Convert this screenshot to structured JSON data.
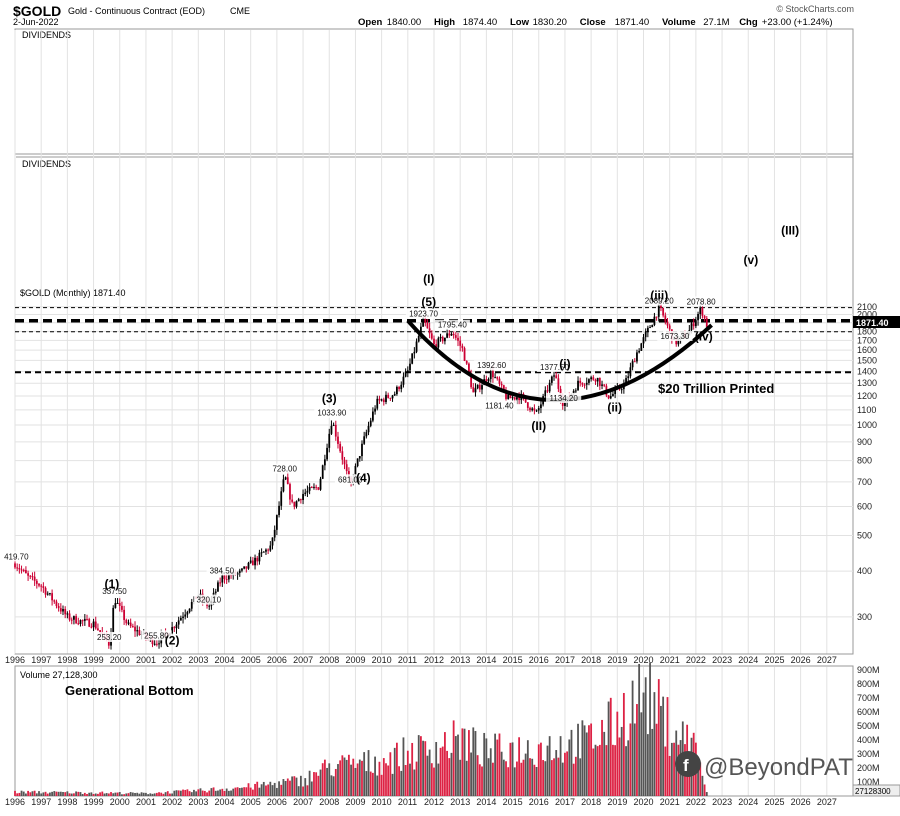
{
  "header": {
    "symbol": "$GOLD",
    "name": "Gold - Continuous Contract (EOD)",
    "exchange": "CME",
    "date": "2-Jun-2022",
    "watermark": "© StockCharts.com",
    "ohlc": [
      {
        "label": "Open",
        "value": "1840.00"
      },
      {
        "label": "High",
        "value": "1874.40"
      },
      {
        "label": "Low",
        "value": "1830.20"
      },
      {
        "label": "Close",
        "value": "1871.40"
      },
      {
        "label": "Volume",
        "value": "27.1M"
      },
      {
        "label": "Chg",
        "value": "+23.00 (+1.24%)"
      }
    ]
  },
  "panels": {
    "dividends_1": "DIVIDENDS",
    "dividends_2": "DIVIDENDS",
    "price_legend": "$GOLD (Monthly) 1871.40",
    "volume_legend": "Volume 27,128,300",
    "price_tag": "1871.40",
    "volume_tag": "27128300"
  },
  "labels": {
    "generational_bottom": "Generational Bottom",
    "trillion": "$20 Trillion Printed",
    "brand": "@BeyondPAT"
  },
  "colors": {
    "up": "#000000",
    "down": "#cc0033",
    "vol_up": "#555555",
    "vol_down": "#dd2244"
  },
  "chart_data": {
    "type": "candlestick",
    "scale": "log",
    "ylim": [
      250,
      2150
    ],
    "xlim": [
      "1996-01",
      "2027-12"
    ],
    "x_ticks": [
      "1996",
      "1997",
      "1998",
      "1999",
      "2000",
      "2001",
      "2002",
      "2003",
      "2004",
      "2005",
      "2006",
      "2007",
      "2008",
      "2009",
      "2010",
      "2011",
      "2012",
      "2013",
      "2014",
      "2015",
      "2016",
      "2017",
      "2018",
      "2019",
      "2020",
      "2021",
      "2022",
      "2023",
      "2024",
      "2025",
      "2026",
      "2027"
    ],
    "y_ticks": [
      300,
      400,
      500,
      600,
      700,
      800,
      900,
      1000,
      1100,
      1200,
      1300,
      1400,
      1500,
      1600,
      1700,
      1800,
      1900,
      2000,
      2100
    ],
    "price_anchors": [
      [
        1996.0,
        419.7
      ],
      [
        1996.5,
        385
      ],
      [
        1997.0,
        365
      ],
      [
        1997.5,
        330
      ],
      [
        1998.0,
        300
      ],
      [
        1998.5,
        292
      ],
      [
        1999.0,
        288
      ],
      [
        1999.6,
        253.2
      ],
      [
        1999.8,
        337.5
      ],
      [
        2000.3,
        285
      ],
      [
        2001.0,
        265
      ],
      [
        2001.4,
        255.8
      ],
      [
        2002.0,
        280
      ],
      [
        2002.5,
        310
      ],
      [
        2003.0,
        345
      ],
      [
        2003.4,
        320.1
      ],
      [
        2003.9,
        384.5
      ],
      [
        2004.6,
        395
      ],
      [
        2005.2,
        430
      ],
      [
        2005.8,
        470
      ],
      [
        2006.3,
        728
      ],
      [
        2006.6,
        600
      ],
      [
        2007.0,
        650
      ],
      [
        2007.6,
        680
      ],
      [
        2008.1,
        1033.9
      ],
      [
        2008.8,
        681
      ],
      [
        2009.3,
        900
      ],
      [
        2009.8,
        1150
      ],
      [
        2010.5,
        1220
      ],
      [
        2011.0,
        1400
      ],
      [
        2011.6,
        1923.7
      ],
      [
        2012.0,
        1650
      ],
      [
        2012.7,
        1795
      ],
      [
        2013.1,
        1600
      ],
      [
        2013.5,
        1220
      ],
      [
        2014.2,
        1392.6
      ],
      [
        2014.8,
        1180
      ],
      [
        2015.3,
        1200
      ],
      [
        2015.9,
        1070
      ],
      [
        2016.6,
        1377.5
      ],
      [
        2016.95,
        1134
      ],
      [
        2017.5,
        1300
      ],
      [
        2018.2,
        1350
      ],
      [
        2018.7,
        1190
      ],
      [
        2019.3,
        1300
      ],
      [
        2019.7,
        1550
      ],
      [
        2020.6,
        2089.2
      ],
      [
        2021.2,
        1673.3
      ],
      [
        2021.7,
        1780
      ],
      [
        2022.2,
        2078.8
      ],
      [
        2022.42,
        1871.4
      ]
    ],
    "annotations": [
      {
        "text": "419.70",
        "x": 1996.05,
        "y": 419.7
      },
      {
        "text": "337.50",
        "x": 1999.8,
        "y": 337.5
      },
      {
        "text": "253.20",
        "x": 1999.6,
        "y": 253.2
      },
      {
        "text": "255.80",
        "x": 2001.4,
        "y": 255.8
      },
      {
        "text": "320.10",
        "x": 2003.4,
        "y": 320.1
      },
      {
        "text": "384.50",
        "x": 2003.9,
        "y": 384.5
      },
      {
        "text": "728.00",
        "x": 2006.3,
        "y": 728
      },
      {
        "text": "1033.90",
        "x": 2008.1,
        "y": 1033.9
      },
      {
        "text": "681.00",
        "x": 2008.8,
        "y": 681
      },
      {
        "text": "1923.70",
        "x": 2011.6,
        "y": 1923.7
      },
      {
        "text": "1795.40",
        "x": 2012.7,
        "y": 1795.4
      },
      {
        "text": "1392.60",
        "x": 2014.2,
        "y": 1392.6
      },
      {
        "text": "1181.40",
        "x": 2014.5,
        "y": 1181.4
      },
      {
        "text": "1377.50",
        "x": 2016.6,
        "y": 1377.5
      },
      {
        "text": "1134.20",
        "x": 2016.95,
        "y": 1134.2
      },
      {
        "text": "2089.20",
        "x": 2020.6,
        "y": 2089.2
      },
      {
        "text": "1673.30",
        "x": 2021.2,
        "y": 1673.3
      },
      {
        "text": "2078.80",
        "x": 2022.2,
        "y": 2078.8
      }
    ],
    "waves": [
      {
        "text": "(1)",
        "x": 1999.7,
        "y": 360
      },
      {
        "text": "(2)",
        "x": 2002.0,
        "y": 252
      },
      {
        "text": "(3)",
        "x": 2008.0,
        "y": 1150
      },
      {
        "text": "(4)",
        "x": 2009.3,
        "y": 700
      },
      {
        "text": "(5)",
        "x": 2011.8,
        "y": 2110
      },
      {
        "text": "(I)",
        "x": 2011.8,
        "y": 2440
      },
      {
        "text": "(II)",
        "x": 2016.0,
        "y": 970
      },
      {
        "text": "(i)",
        "x": 2017.0,
        "y": 1430
      },
      {
        "text": "(ii)",
        "x": 2018.9,
        "y": 1090
      },
      {
        "text": "(iii)",
        "x": 2020.6,
        "y": 2200
      },
      {
        "text": "(iv)",
        "x": 2022.3,
        "y": 1700
      },
      {
        "text": "(v)",
        "x": 2024.1,
        "y": 2750
      },
      {
        "text": "(III)",
        "x": 2025.6,
        "y": 3300
      }
    ],
    "horizontal_lines": [
      {
        "y": 2089.2,
        "style": "thin-dash"
      },
      {
        "y": 1923.7,
        "style": "thick-dash"
      },
      {
        "y": 1795.4,
        "style": "thin-dash"
      },
      {
        "y": 1392.6,
        "style": "medium-dash"
      }
    ],
    "volume": {
      "ylim": [
        0,
        900
      ],
      "unit": "M",
      "y_ticks": [
        100,
        200,
        300,
        400,
        500,
        600,
        700,
        800,
        900
      ],
      "y_tick_labels": [
        "100M",
        "200M",
        "300M",
        "400M",
        "500M",
        "600M",
        "700M",
        "800M",
        "900M"
      ],
      "anchors": [
        [
          1996,
          30
        ],
        [
          1999,
          25
        ],
        [
          2001,
          20
        ],
        [
          2003,
          40
        ],
        [
          2005,
          70
        ],
        [
          2007,
          120
        ],
        [
          2008,
          220
        ],
        [
          2010,
          260
        ],
        [
          2011,
          320
        ],
        [
          2012,
          360
        ],
        [
          2013,
          420
        ],
        [
          2014,
          330
        ],
        [
          2016,
          360
        ],
        [
          2018,
          420
        ],
        [
          2019,
          560
        ],
        [
          2020,
          780
        ],
        [
          2021,
          520
        ],
        [
          2022,
          370
        ],
        [
          2022.42,
          27.1
        ]
      ]
    }
  }
}
